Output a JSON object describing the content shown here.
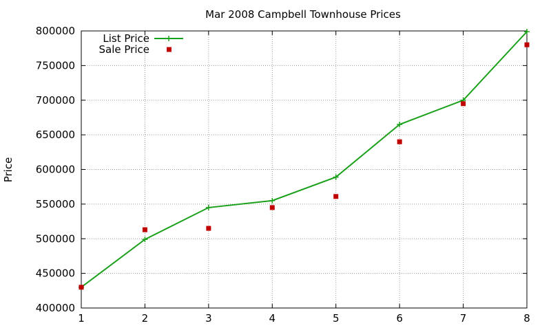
{
  "chart_data": {
    "type": "line",
    "title": "Mar 2008 Campbell Townhouse Prices",
    "xlabel": "",
    "ylabel": "Price",
    "x": [
      1,
      2,
      3,
      4,
      5,
      6,
      7,
      8
    ],
    "xlim": [
      1,
      8
    ],
    "ylim": [
      400000,
      800000
    ],
    "xticks": [
      "1",
      "2",
      "3",
      "4",
      "5",
      "6",
      "7",
      "8"
    ],
    "yticks": [
      "400000",
      "450000",
      "500000",
      "550000",
      "600000",
      "650000",
      "700000",
      "750000",
      "800000"
    ],
    "grid": true,
    "legend_position": "top-left",
    "series": [
      {
        "name": "List Price",
        "style": "line-with-plus-markers",
        "color": "#1aa01a",
        "values": [
          430000,
          499000,
          545000,
          555000,
          589000,
          665000,
          700000,
          799000
        ]
      },
      {
        "name": "Sale Price",
        "style": "square-markers",
        "color": "#c00000",
        "values": [
          430000,
          513000,
          515000,
          545000,
          561000,
          640000,
          695000,
          780000
        ]
      }
    ]
  }
}
